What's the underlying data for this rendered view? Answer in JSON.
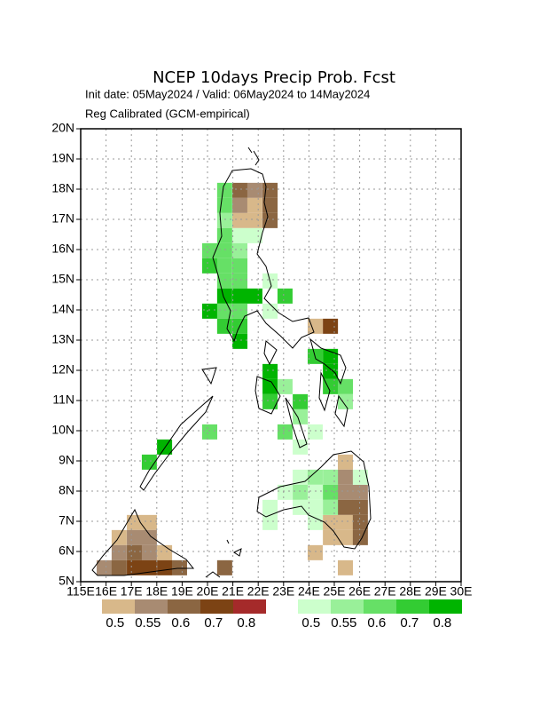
{
  "chart_data": {
    "type": "map",
    "title": "NCEP 10days Precip Prob. Fcst",
    "subtitle": "Init date: 05May2024 / Valid: 06May2024 to 14May2024",
    "note": "Reg Calibrated (GCM-empirical)",
    "xlim": [
      115,
      130
    ],
    "ylim": [
      5,
      20
    ],
    "grid": true,
    "xticks": [
      {
        "value": 115,
        "label": "115E"
      },
      {
        "value": 116,
        "label": "16E"
      },
      {
        "value": 117,
        "label": "17E"
      },
      {
        "value": 118,
        "label": "18E"
      },
      {
        "value": 119,
        "label": "19E"
      },
      {
        "value": 120,
        "label": "20E"
      },
      {
        "value": 121,
        "label": "21E"
      },
      {
        "value": 122,
        "label": "22E"
      },
      {
        "value": 123,
        "label": "23E"
      },
      {
        "value": 124,
        "label": "24E"
      },
      {
        "value": 125,
        "label": "25E"
      },
      {
        "value": 126,
        "label": "26E"
      },
      {
        "value": 127,
        "label": "27E"
      },
      {
        "value": 128,
        "label": "28E"
      },
      {
        "value": 129,
        "label": "29E"
      },
      {
        "value": 130,
        "label": "30E"
      }
    ],
    "yticks": [
      {
        "value": 5,
        "label": "5N"
      },
      {
        "value": 6,
        "label": "6N"
      },
      {
        "value": 7,
        "label": "7N"
      },
      {
        "value": 8,
        "label": "8N"
      },
      {
        "value": 9,
        "label": "9N"
      },
      {
        "value": 10,
        "label": "10N"
      },
      {
        "value": 11,
        "label": "11N"
      },
      {
        "value": 12,
        "label": "12N"
      },
      {
        "value": 13,
        "label": "13N"
      },
      {
        "value": 14,
        "label": "14N"
      },
      {
        "value": 15,
        "label": "15N"
      },
      {
        "value": 16,
        "label": "16N"
      },
      {
        "value": 17,
        "label": "17N"
      },
      {
        "value": 18,
        "label": "18N"
      },
      {
        "value": 19,
        "label": "19N"
      },
      {
        "value": 20,
        "label": "20N"
      }
    ],
    "layers": [
      {
        "levels": [
          0.5,
          0.55,
          0.6,
          0.7,
          0.8
        ],
        "colors": [
          "#d8b88a",
          "#a88b72",
          "#8b6642",
          "#7c4314",
          "#a52a2a"
        ],
        "lon": [
          120.98,
          121.57,
          122.17,
          120.98,
          121.57,
          122.17,
          120.98,
          121.57,
          122.17,
          123.95,
          124.55,
          125.14,
          125.14,
          125.14,
          125.73,
          125.14,
          125.73,
          124.55,
          125.14,
          125.73,
          124.55,
          125.14,
          125.73,
          123.95,
          125.14,
          116.82,
          117.41,
          116.22,
          116.82,
          117.41,
          116.22,
          116.82,
          117.41,
          118.01,
          115.63,
          116.22,
          116.82,
          117.41,
          118.01,
          118.6,
          120.38
        ],
        "lat": [
          17.71,
          17.71,
          17.71,
          17.21,
          17.21,
          17.21,
          16.71,
          16.71,
          16.71,
          13.21,
          13.21,
          8.71,
          8.21,
          7.71,
          7.71,
          7.21,
          7.21,
          6.71,
          6.71,
          6.71,
          6.21,
          6.21,
          6.21,
          5.71,
          5.21,
          6.71,
          6.71,
          6.21,
          6.21,
          6.21,
          5.71,
          5.71,
          5.71,
          5.71,
          5.21,
          5.21,
          5.21,
          5.21,
          5.21,
          5.21,
          5.21
        ],
        "values": [
          0.6,
          0.55,
          0.6,
          0.55,
          0.5,
          0.6,
          0.5,
          0.5,
          0.6,
          0.5,
          0.7,
          0.5,
          0.55,
          0.55,
          0.55,
          0.6,
          0.6,
          0.5,
          0.5,
          0.6,
          0.5,
          0.5,
          0.6,
          0.5,
          0.5,
          0.5,
          0.5,
          0.5,
          0.55,
          0.55,
          0.55,
          0.6,
          0.55,
          0.5,
          0.55,
          0.6,
          0.7,
          0.7,
          0.7,
          0.6,
          0.6
        ]
      },
      {
        "levels": [
          0.5,
          0.55,
          0.6,
          0.7,
          0.8
        ],
        "colors": [
          "#ccffcc",
          "#99f099",
          "#66e066",
          "#33cc33",
          "#00b400"
        ],
        "lon": [
          120.38,
          120.38,
          120.38,
          120.98,
          121.57,
          120.38,
          119.79,
          120.38,
          120.98,
          119.79,
          120.38,
          120.98,
          120.38,
          120.98,
          122.17,
          120.38,
          120.98,
          121.57,
          122.76,
          119.79,
          120.38,
          120.98,
          122.17,
          120.38,
          120.98,
          120.98,
          123.95,
          124.55,
          122.17,
          124.55,
          122.17,
          122.76,
          124.55,
          125.14,
          122.17,
          123.36,
          125.14,
          123.36,
          122.76,
          123.95,
          123.36,
          118.01,
          117.41,
          125.73,
          123.36,
          123.95,
          124.55,
          122.76,
          123.36,
          123.95,
          124.55,
          122.17,
          123.36,
          123.95,
          122.17,
          123.95,
          124.55,
          119.79
        ],
        "lat": [
          17.71,
          17.21,
          16.71,
          16.21,
          16.21,
          16.21,
          15.71,
          15.71,
          15.71,
          15.21,
          15.21,
          15.21,
          14.71,
          14.71,
          14.71,
          14.21,
          14.21,
          14.21,
          14.21,
          13.71,
          13.71,
          13.71,
          13.71,
          13.21,
          13.21,
          12.71,
          12.21,
          12.21,
          11.71,
          11.71,
          11.21,
          11.21,
          11.21,
          11.21,
          10.71,
          10.71,
          10.71,
          10.21,
          9.71,
          9.71,
          9.21,
          9.21,
          8.71,
          8.21,
          8.21,
          8.21,
          8.21,
          7.71,
          7.71,
          7.71,
          7.71,
          7.21,
          7.21,
          7.21,
          6.71,
          6.71,
          7.21,
          9.71
        ],
        "values": [
          0.6,
          0.6,
          0.55,
          0.5,
          0.5,
          0.6,
          0.6,
          0.6,
          0.55,
          0.7,
          0.6,
          0.6,
          0.6,
          0.6,
          0.5,
          0.8,
          0.8,
          0.8,
          0.7,
          0.8,
          0.6,
          0.6,
          0.5,
          0.7,
          0.7,
          0.8,
          0.7,
          0.8,
          0.8,
          0.8,
          0.8,
          0.55,
          0.7,
          0.6,
          0.7,
          0.7,
          0.55,
          0.55,
          0.6,
          0.5,
          0.5,
          0.8,
          0.7,
          0.5,
          0.5,
          0.55,
          0.55,
          0.5,
          0.55,
          0.5,
          0.6,
          0.5,
          0.5,
          0.5,
          0.5,
          0.5,
          0.55,
          0.6
        ]
      }
    ]
  }
}
